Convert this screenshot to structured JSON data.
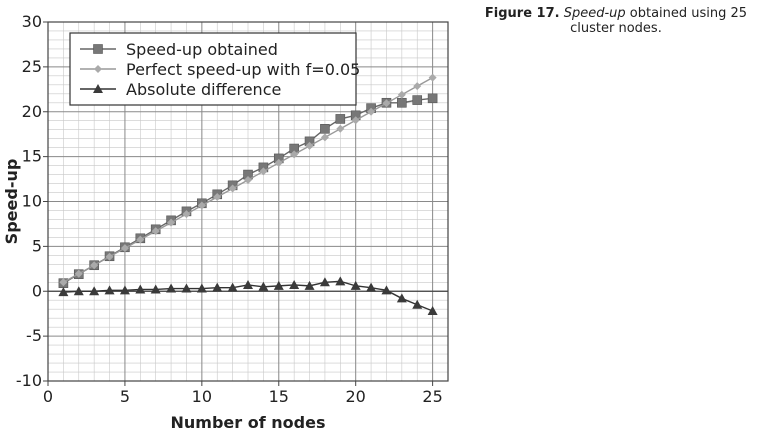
{
  "caption": {
    "label": "Figure 17.",
    "emph": "Speed-up",
    "rest": " obtained using 25 cluster nodes."
  },
  "chart_data": {
    "type": "line",
    "title": "",
    "xlabel": "Number of nodes",
    "ylabel": "Speed-up",
    "xlim": [
      0,
      26
    ],
    "ylim": [
      -10,
      30
    ],
    "xticks": [
      0,
      5,
      10,
      15,
      20,
      25
    ],
    "yticks": [
      -10,
      -5,
      0,
      5,
      10,
      15,
      20,
      25,
      30
    ],
    "grid": true,
    "legend_position": "top-left",
    "x": [
      1,
      2,
      3,
      4,
      5,
      6,
      7,
      8,
      9,
      10,
      11,
      12,
      13,
      14,
      15,
      16,
      17,
      18,
      19,
      20,
      21,
      22,
      23,
      24,
      25
    ],
    "series": [
      {
        "name": "Speed-up obtained",
        "marker": "square",
        "color": "#777777",
        "values": [
          0.9,
          1.9,
          2.9,
          3.9,
          4.9,
          5.9,
          6.9,
          7.9,
          8.9,
          9.8,
          10.8,
          11.8,
          13.0,
          13.8,
          14.8,
          15.9,
          16.7,
          18.1,
          19.2,
          19.6,
          20.4,
          21.0,
          21.0,
          21.3,
          21.5
        ]
      },
      {
        "name": "Perfect speed-up with f=0.05",
        "marker": "diamond",
        "color": "#aaaaaa",
        "values": [
          1.0,
          1.95,
          2.9,
          3.85,
          4.8,
          5.75,
          6.7,
          7.65,
          8.6,
          9.55,
          10.5,
          11.45,
          12.4,
          13.35,
          14.3,
          15.25,
          16.2,
          17.15,
          18.1,
          19.05,
          20.0,
          20.95,
          21.9,
          22.85,
          23.8
        ]
      },
      {
        "name": "Absolute difference",
        "marker": "triangle",
        "color": "#3a3a3a",
        "values": [
          -0.1,
          0.0,
          0.0,
          0.1,
          0.1,
          0.2,
          0.2,
          0.3,
          0.3,
          0.3,
          0.4,
          0.4,
          0.7,
          0.5,
          0.6,
          0.7,
          0.6,
          1.0,
          1.1,
          0.6,
          0.4,
          0.1,
          -0.8,
          -1.5,
          -2.2
        ]
      }
    ]
  }
}
